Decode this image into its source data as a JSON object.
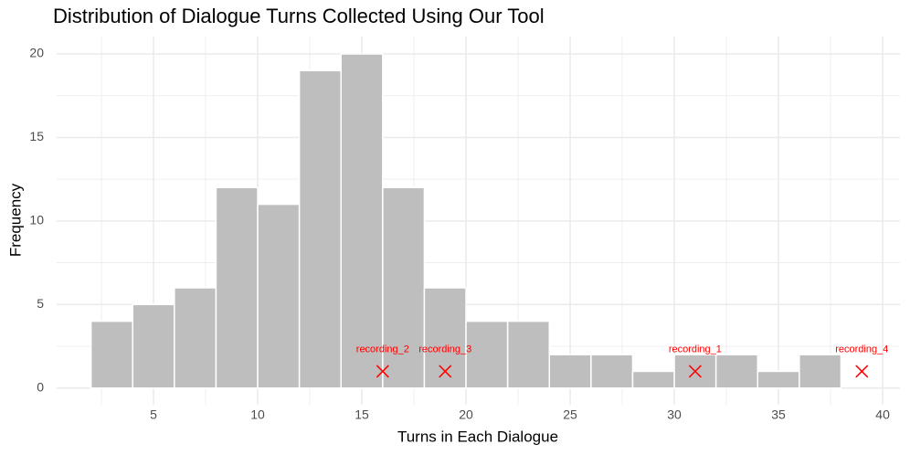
{
  "chart_data": {
    "type": "histogram",
    "title": "Distribution of Dialogue Turns Collected Using Our Tool",
    "x_label": "Turns in Each Dialogue",
    "y_label": "Frequency",
    "bins": [
      2,
      4,
      6,
      8,
      10,
      12,
      14,
      16,
      18,
      20,
      22,
      24,
      26,
      28,
      30,
      32,
      34,
      36,
      38
    ],
    "counts": [
      4,
      5,
      6,
      12,
      11,
      19,
      20,
      12,
      6,
      4,
      4,
      2,
      2,
      1,
      2,
      2,
      1,
      2
    ],
    "color": "#bebebe",
    "edge_color": "#ffffff",
    "xlim": [
      0.35,
      40.83
    ],
    "xticks": [
      5,
      10,
      15,
      20,
      25,
      30,
      35,
      40
    ],
    "ylim": [
      -1,
      21.04
    ],
    "yticks": [
      0,
      5,
      10,
      15,
      20
    ],
    "grid": true,
    "minor_grid": true,
    "annotations": {
      "type": "scatter",
      "marker": "x",
      "color": "#ff0000",
      "x": [
        31,
        16,
        19,
        39
      ],
      "y": [
        1,
        1,
        1,
        1
      ],
      "labels": [
        "recording_1",
        "recording_2",
        "recording_3",
        "recording_4"
      ]
    }
  }
}
